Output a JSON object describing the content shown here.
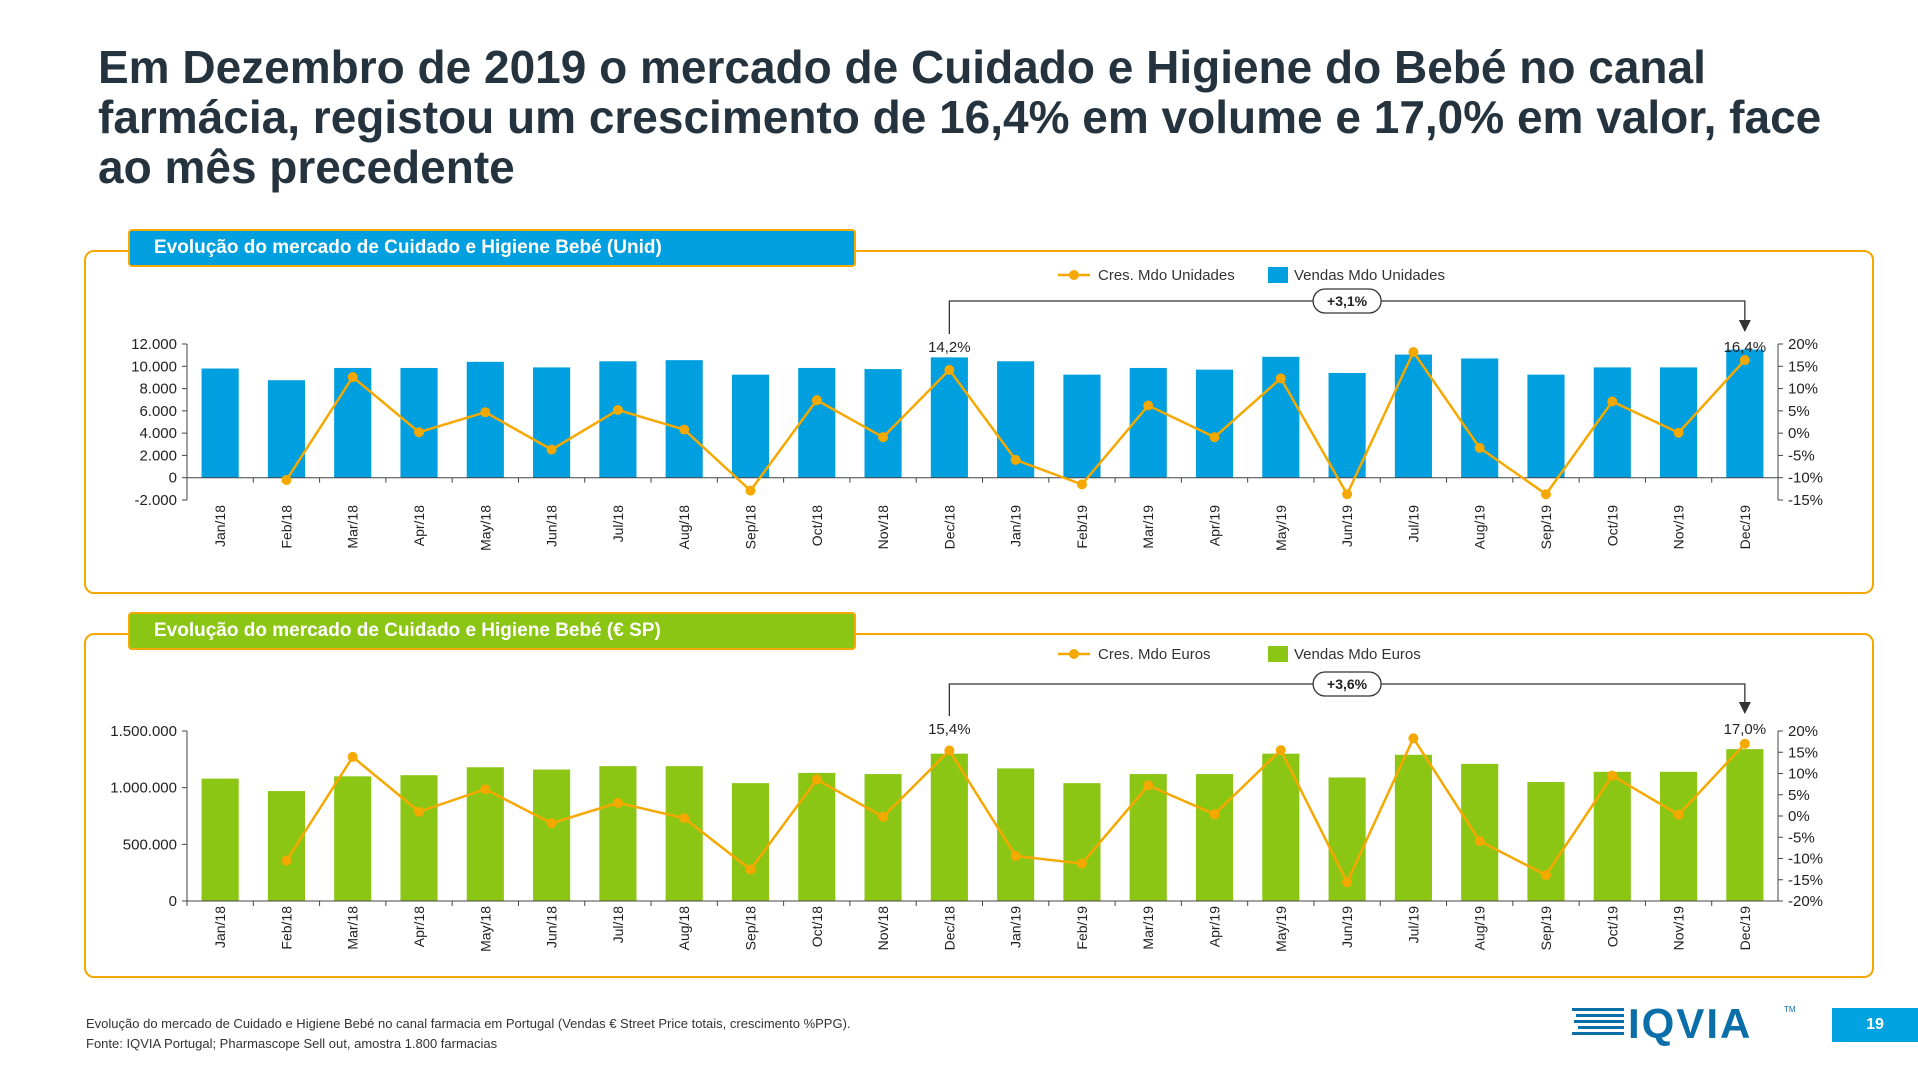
{
  "slide": {
    "title": "Em Dezembro de 2019 o mercado de Cuidado e Higiene do Bebé no canal farmácia,  registou um crescimento de 16,4% em volume e 17,0% em valor, face ao mês precedente",
    "footnote_line1": "Evolução do mercado de Cuidado e Higiene Bebé no canal farmacia em Portugal (Vendas € Street Price totais, crescimento %PPG).",
    "footnote_line2": "Fonte: IQVIA Portugal; Pharmascope Sell out, amostra 1.800 farmacias",
    "logo_text": "IQVIA",
    "logo_tm": "TM",
    "page_number": "19"
  },
  "chart_data": [
    {
      "type": "bar",
      "title": "Evolução do mercado de Cuidado e Higiene Bebé (Unid)",
      "categories": [
        "Jan/18",
        "Feb/18",
        "Mar/18",
        "Apr/18",
        "May/18",
        "Jun/18",
        "Jul/18",
        "Aug/18",
        "Sep/18",
        "Oct/18",
        "Nov/18",
        "Dec/18",
        "Jan/19",
        "Feb/19",
        "Mar/19",
        "Apr/19",
        "May/19",
        "Jun/19",
        "Jul/19",
        "Aug/19",
        "Sep/19",
        "Oct/19",
        "Nov/19",
        "Dec/19"
      ],
      "series": [
        {
          "name": "Vendas Mdo Unidades",
          "type": "bar",
          "axis": "left",
          "color": "#009fdf",
          "values": [
            9800,
            8750,
            9850,
            9850,
            10400,
            9900,
            10450,
            10550,
            9250,
            9850,
            9750,
            10800,
            10450,
            9250,
            9850,
            9700,
            10850,
            9400,
            11050,
            10700,
            9250,
            9900,
            9900,
            11500
          ]
        },
        {
          "name": "Cres. Mdo Unidades",
          "type": "line",
          "axis": "right",
          "color": "#f5a800",
          "values": [
            null,
            -10.5,
            12.6,
            0.2,
            4.7,
            -3.7,
            5.2,
            0.8,
            -12.9,
            7.4,
            -0.9,
            14.2,
            -6.0,
            -11.5,
            6.2,
            -0.9,
            12.3,
            -13.7,
            18.2,
            -3.3,
            -13.7,
            7.1,
            0.1,
            16.4
          ]
        }
      ],
      "left_axis": {
        "ticks": [
          "12.000",
          "10.000",
          "8.000",
          "6.000",
          "4.000",
          "2.000",
          "0",
          "-2.000"
        ],
        "ylim": [
          -2000,
          12000
        ]
      },
      "right_axis": {
        "ticks": [
          "20%",
          "15%",
          "10%",
          "5%",
          "0%",
          "-5%",
          "-10%",
          "-15%"
        ],
        "ylim": [
          -15,
          20
        ]
      },
      "data_labels": {
        "Dec/18": "14,2%",
        "Dec/19": "16,4%"
      },
      "annotation": "+3,1%",
      "legend": {
        "position": "top"
      }
    },
    {
      "type": "bar",
      "title": "Evolução do mercado de Cuidado e Higiene Bebé (€ SP)",
      "categories": [
        "Jan/18",
        "Feb/18",
        "Mar/18",
        "Apr/18",
        "May/18",
        "Jun/18",
        "Jul/18",
        "Aug/18",
        "Sep/18",
        "Oct/18",
        "Nov/18",
        "Dec/18",
        "Jan/19",
        "Feb/19",
        "Mar/19",
        "Apr/19",
        "May/19",
        "Jun/19",
        "Jul/19",
        "Aug/19",
        "Sep/19",
        "Oct/19",
        "Nov/19",
        "Dec/19"
      ],
      "series": [
        {
          "name": "Vendas Mdo Euros",
          "type": "bar",
          "axis": "left",
          "color": "#8cc614",
          "values": [
            1080000,
            970000,
            1100000,
            1110000,
            1180000,
            1160000,
            1190000,
            1190000,
            1040000,
            1130000,
            1120000,
            1300000,
            1170000,
            1040000,
            1120000,
            1120000,
            1300000,
            1090000,
            1290000,
            1210000,
            1050000,
            1140000,
            1140000,
            1340000
          ]
        },
        {
          "name": "Cres. Mdo Euros",
          "type": "line",
          "axis": "right",
          "color": "#f5a800",
          "values": [
            null,
            -10.5,
            13.9,
            1.0,
            6.3,
            -1.7,
            3.1,
            -0.5,
            -12.6,
            8.6,
            -0.2,
            15.4,
            -9.4,
            -11.2,
            7.2,
            0.4,
            15.5,
            -15.6,
            18.3,
            -5.9,
            -13.9,
            9.5,
            0.3,
            17.0
          ]
        }
      ],
      "left_axis": {
        "ticks": [
          "1.500.000",
          "1.000.000",
          "500.000",
          "0"
        ],
        "ylim": [
          0,
          1500000
        ]
      },
      "right_axis": {
        "ticks": [
          "20%",
          "15%",
          "10%",
          "5%",
          "0%",
          "-5%",
          "-10%",
          "-15%",
          "-20%"
        ],
        "ylim": [
          -20,
          20
        ]
      },
      "data_labels": {
        "Dec/18": "15,4%",
        "Dec/19": "17,0%"
      },
      "annotation": "+3,6%",
      "legend": {
        "position": "top"
      }
    }
  ]
}
